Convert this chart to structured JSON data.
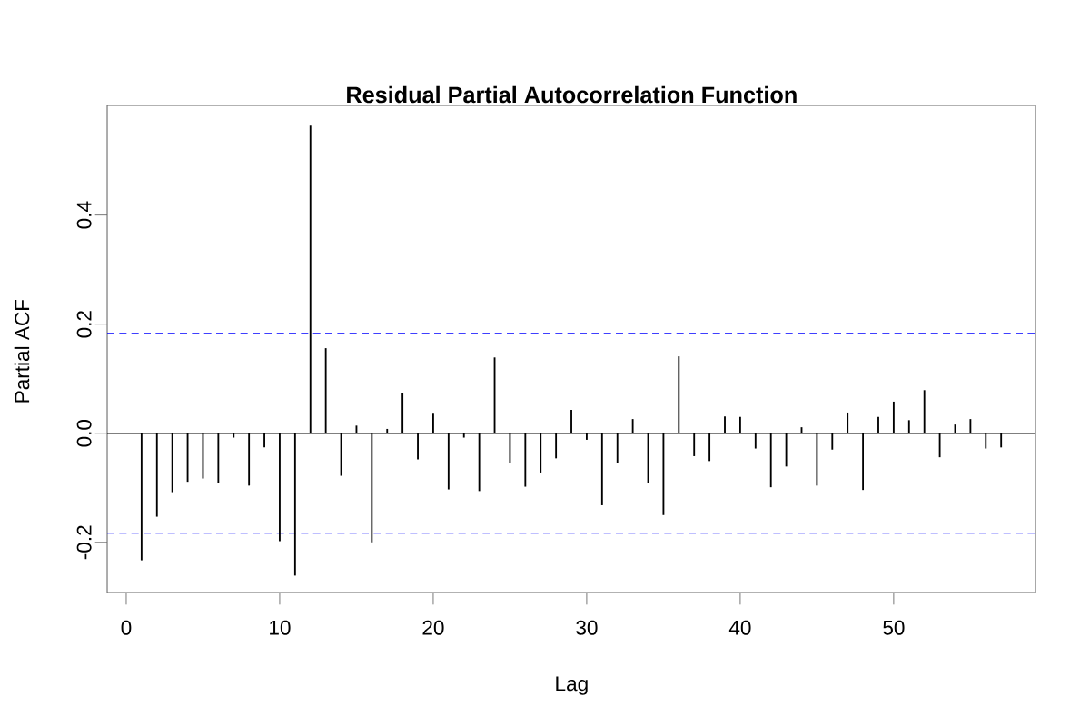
{
  "chart_data": {
    "type": "bar",
    "title": "Residual Partial Autocorrelation Function",
    "xlabel": "Lag",
    "ylabel": "Partial ACF",
    "x": [
      1,
      2,
      3,
      4,
      5,
      6,
      7,
      8,
      9,
      10,
      11,
      12,
      13,
      14,
      15,
      16,
      17,
      18,
      19,
      20,
      21,
      22,
      23,
      24,
      25,
      26,
      27,
      28,
      29,
      30,
      31,
      32,
      33,
      34,
      35,
      36,
      37,
      38,
      39,
      40,
      41,
      42,
      43,
      44,
      45,
      46,
      47,
      48,
      49,
      50,
      51,
      52,
      53,
      54,
      55,
      56,
      57
    ],
    "values": [
      -0.233,
      -0.153,
      -0.108,
      -0.089,
      -0.083,
      -0.091,
      -0.008,
      -0.096,
      -0.026,
      -0.198,
      -0.261,
      0.564,
      0.156,
      -0.078,
      0.014,
      -0.2,
      0.008,
      0.074,
      -0.048,
      0.036,
      -0.103,
      -0.008,
      -0.106,
      0.139,
      -0.054,
      -0.098,
      -0.072,
      -0.046,
      0.043,
      -0.012,
      -0.132,
      -0.054,
      0.026,
      -0.092,
      -0.15,
      0.141,
      -0.042,
      -0.051,
      0.031,
      0.03,
      -0.028,
      -0.099,
      -0.061,
      0.011,
      -0.096,
      -0.03,
      0.038,
      -0.104,
      0.03,
      0.058,
      0.024,
      0.079,
      -0.044,
      0.016,
      0.026,
      -0.028,
      -0.026
    ],
    "color": "#000000",
    "xlim": [
      -1.24,
      59.24
    ],
    "ylim": [
      -0.292,
      0.601
    ],
    "xticks": [
      0,
      10,
      20,
      30,
      40,
      50
    ],
    "yticks": [
      -0.2,
      {
        "value": 0,
        "label": "0.0"
      },
      0.2,
      0.4
    ],
    "ref_lines": [
      {
        "axis": "y",
        "value": 0,
        "color": "#000000",
        "line_style": "solid"
      },
      {
        "axis": "y",
        "value": 0.183,
        "color": "#0000ff",
        "line_style": "dashed"
      },
      {
        "axis": "y",
        "value": -0.183,
        "color": "#0000ff",
        "line_style": "dashed"
      }
    ],
    "marker": "none"
  }
}
